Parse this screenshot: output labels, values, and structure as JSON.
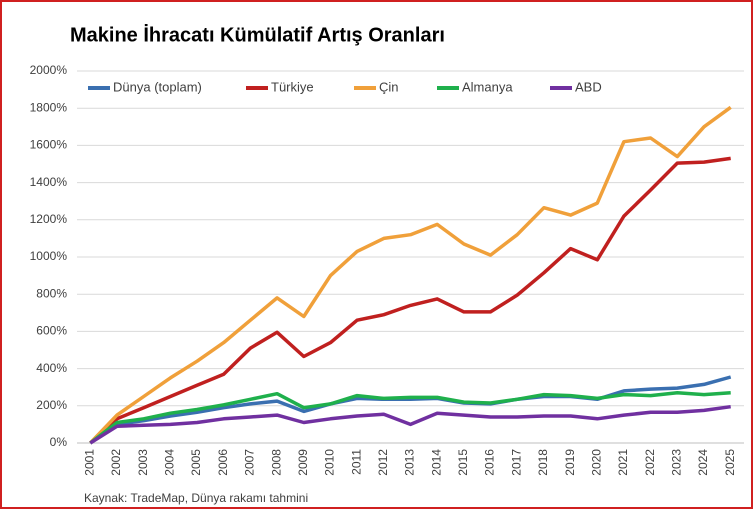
{
  "chart_data": {
    "type": "line",
    "title": "Makine İhracatı Kümülatif Artış Oranları",
    "source": "Kaynak: TradeMap, Dünya rakamı tahmini",
    "categories": [
      "2001",
      "2002",
      "2003",
      "2004",
      "2005",
      "2006",
      "2007",
      "2008",
      "2009",
      "2010",
      "2011",
      "2012",
      "2013",
      "2014",
      "2015",
      "2016",
      "2017",
      "2018",
      "2019",
      "2020",
      "2021",
      "2022",
      "2023",
      "2024",
      "2025"
    ],
    "series": [
      {
        "name": "Dünya (toplam)",
        "color": "#3a6fb0",
        "values": [
          0,
          100,
          120,
          145,
          165,
          190,
          210,
          225,
          170,
          210,
          240,
          235,
          235,
          240,
          215,
          210,
          235,
          250,
          250,
          235,
          280,
          290,
          295,
          315,
          355
        ]
      },
      {
        "name": "Türkiye",
        "color": "#c0201f",
        "values": [
          0,
          130,
          190,
          250,
          310,
          370,
          510,
          595,
          465,
          540,
          660,
          690,
          740,
          775,
          705,
          705,
          795,
          915,
          1045,
          985,
          1220,
          1360,
          1505,
          1510,
          1530
        ]
      },
      {
        "name": "Çin",
        "color": "#f0a03a",
        "values": [
          0,
          150,
          250,
          350,
          440,
          540,
          660,
          780,
          680,
          900,
          1030,
          1100,
          1120,
          1175,
          1070,
          1010,
          1120,
          1265,
          1225,
          1290,
          1620,
          1640,
          1540,
          1700,
          1805
        ]
      },
      {
        "name": "Almanya",
        "color": "#1fb04c",
        "values": [
          0,
          110,
          130,
          160,
          180,
          205,
          235,
          265,
          190,
          210,
          255,
          240,
          245,
          245,
          220,
          215,
          235,
          260,
          255,
          240,
          260,
          255,
          270,
          260,
          270
        ]
      },
      {
        "name": "ABD",
        "color": "#7030a0",
        "values": [
          0,
          90,
          95,
          100,
          110,
          130,
          140,
          150,
          110,
          130,
          145,
          155,
          100,
          160,
          150,
          140,
          140,
          145,
          145,
          130,
          150,
          165,
          165,
          175,
          195
        ]
      }
    ],
    "ylim": [
      0,
      2000
    ],
    "yticks": [
      {
        "value": 0,
        "label": "0%"
      },
      {
        "value": 200,
        "label": "200%"
      },
      {
        "value": 400,
        "label": "400%"
      },
      {
        "value": 600,
        "label": "600%"
      },
      {
        "value": 800,
        "label": "800%"
      },
      {
        "value": 1000,
        "label": "1000%"
      },
      {
        "value": 1200,
        "label": "1200%"
      },
      {
        "value": 1400,
        "label": "1400%"
      },
      {
        "value": 1600,
        "label": "1600%"
      },
      {
        "value": 1800,
        "label": "1800%"
      },
      {
        "value": 2000,
        "label": "2000%"
      }
    ],
    "grid": true,
    "legend": "top"
  }
}
